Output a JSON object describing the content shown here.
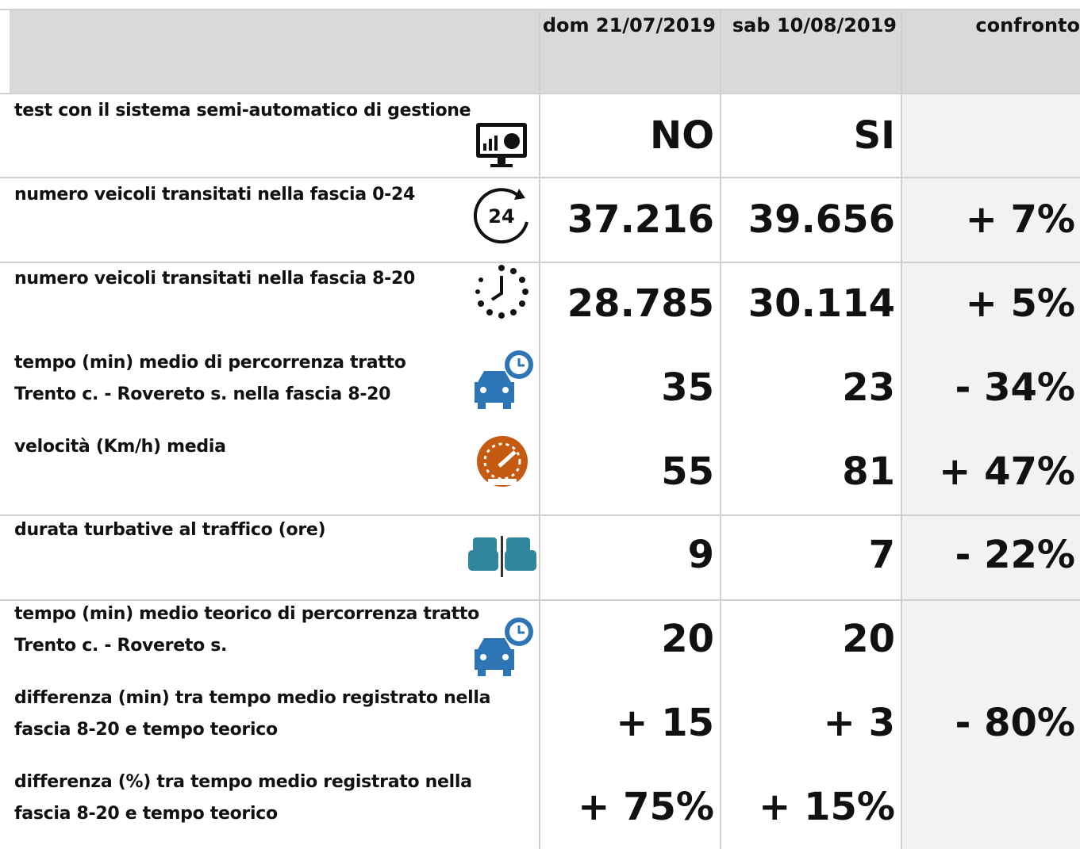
{
  "header": {
    "columns": [
      "dom 21/07/2019",
      "sab 10/08/2019",
      "confronto"
    ]
  },
  "table": {
    "rows": [
      {
        "label": [
          "test con il sistema semi-automatico di gestione"
        ],
        "values": [
          "NO",
          "SI"
        ]
      },
      {
        "label": [
          "numero veicoli transitati nella fascia 0-24"
        ],
        "values": [
          "37.216",
          "39.656"
        ],
        "comparison": "+ 7%"
      },
      {
        "label": [
          "numero veicoli transitati nella fascia 8-20"
        ],
        "values": [
          "28.785",
          "30.114"
        ],
        "comparison": "+ 5%"
      },
      {
        "label": [
          "tempo (min) medio di percorrenza tratto",
          "Trento c. - Rovereto s. nella fascia 8-20"
        ],
        "values": [
          "35",
          "23"
        ],
        "comparison": "- 34%"
      },
      {
        "label": [
          "velocità (Km/h) media"
        ],
        "values": [
          "55",
          "81"
        ],
        "comparison": "+ 47%"
      },
      {
        "label": [
          "durata turbative al traffico (ore)"
        ],
        "values": [
          "9",
          "7"
        ],
        "comparison": "- 22%"
      },
      {
        "label": [
          "tempo (min) medio teorico di percorrenza tratto",
          "Trento c. - Rovereto s."
        ],
        "values": [
          "20",
          "20"
        ]
      },
      {
        "label": [
          "differenza (min) tra tempo medio registrato nella",
          "fascia 8-20 e tempo teorico"
        ],
        "values": [
          "+ 15",
          "+ 3"
        ]
      },
      {
        "label": [
          "differenza (%) tra tempo medio registrato nella",
          "fascia 8-20 e tempo teorico"
        ],
        "values": [
          "+ 75%",
          "+ 15%"
        ]
      }
    ],
    "merged_comparison": "- 80%"
  }
}
